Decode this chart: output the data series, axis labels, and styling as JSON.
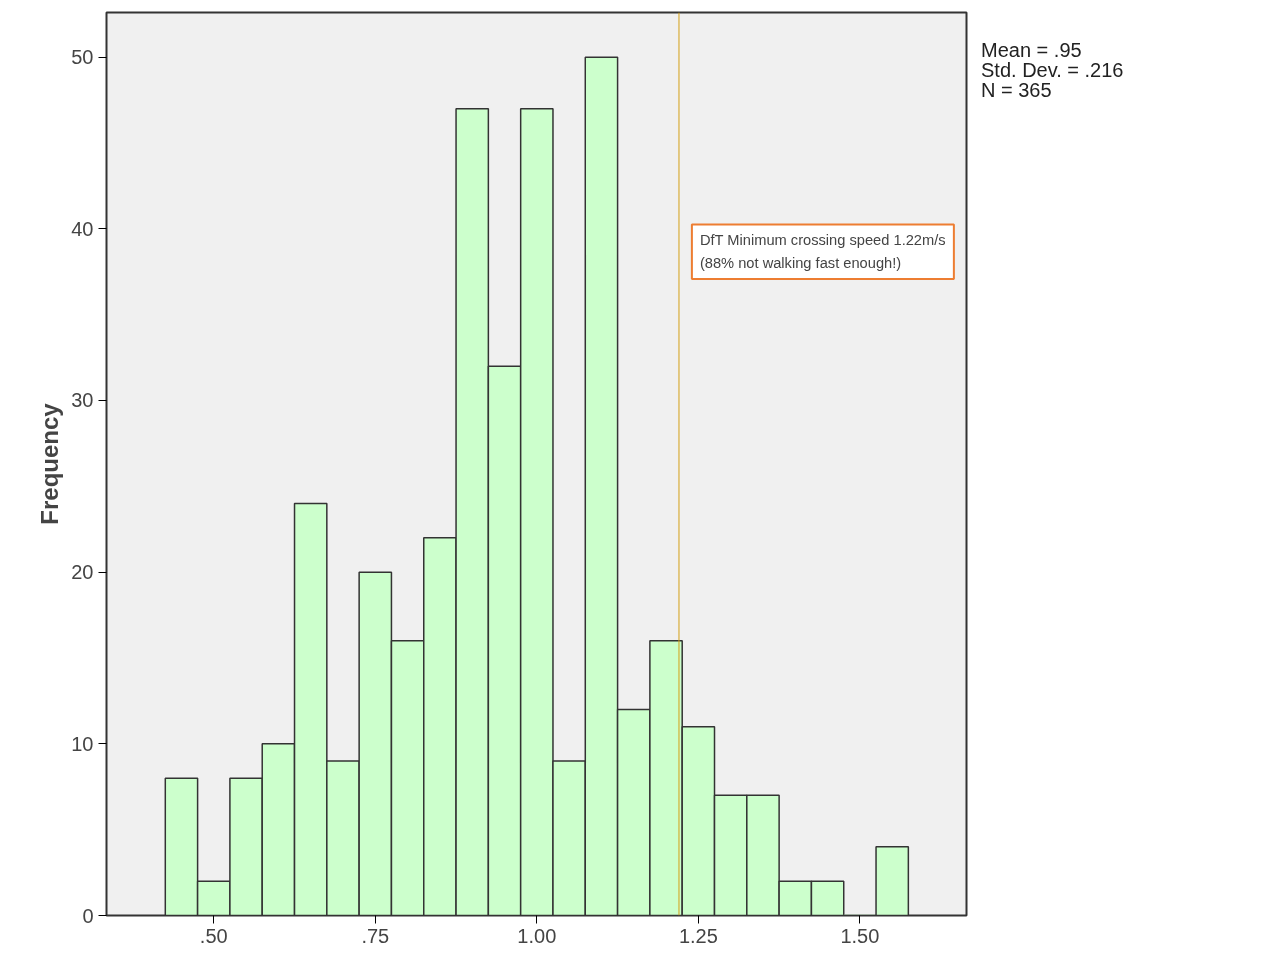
{
  "chart_data": {
    "type": "histogram",
    "ylabel": "Frequency",
    "bins": [
      0.425,
      0.475,
      0.525,
      0.575,
      0.625,
      0.675,
      0.725,
      0.775,
      0.825,
      0.875,
      0.925,
      0.975,
      1.025,
      1.075,
      1.125,
      1.175,
      1.225,
      1.275,
      1.325,
      1.375,
      1.425,
      1.475,
      1.525,
      1.575
    ],
    "values": [
      8,
      2,
      8,
      10,
      24,
      9,
      20,
      16,
      22,
      47,
      32,
      47,
      9,
      50,
      12,
      16,
      11,
      7,
      7,
      2,
      2,
      0,
      4
    ],
    "color": "#ccffcc",
    "xlim": [
      0.334,
      1.665
    ],
    "ylim": [
      0,
      52.6
    ],
    "xticks": [
      {
        "value": 0.5,
        "label": ".50"
      },
      {
        "value": 0.75,
        "label": ".75"
      },
      {
        "value": 1.0,
        "label": "1.00"
      },
      {
        "value": 1.25,
        "label": "1.25"
      },
      {
        "value": 1.5,
        "label": "1.50"
      }
    ],
    "yticks": [
      0,
      10,
      20,
      30,
      40,
      50
    ],
    "grid": false,
    "ref_lines": [
      {
        "axis": "x",
        "value": 1.22,
        "color": "#d4a017",
        "label": "DfT Minimum crossing speed 1.22m/s\n(88% not walking fast enough!)"
      }
    ],
    "annotations": [
      "Mean = .95",
      "Std. Dev. = .216",
      "N = 365"
    ]
  }
}
